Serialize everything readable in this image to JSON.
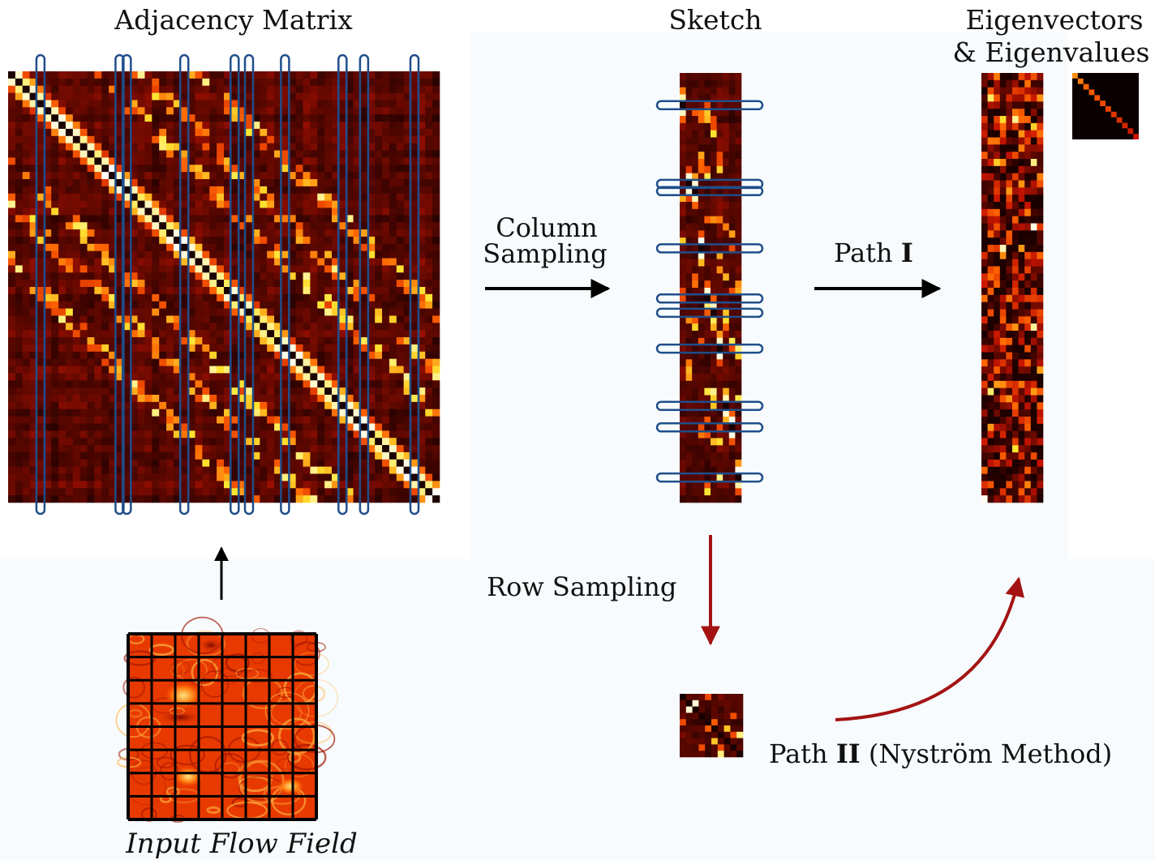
{
  "labels": {
    "adjacency_title": "Adjacency Matrix",
    "sketch_title": "Sketch",
    "eigen_title_line1": "Eigenvectors",
    "eigen_title_line2": "& Eigenvalues",
    "column_sampling_line1": "Column",
    "column_sampling_line2": "Sampling",
    "path1_prefix": "Path ",
    "path1_numeral": "I",
    "row_sampling": "Row Sampling",
    "path2_prefix": "Path ",
    "path2_numeral": "II",
    "path2_suffix": " (Nyström Method)",
    "input_flow_field": "Input Flow Field"
  },
  "colors": {
    "heat_dark": "#1a0000",
    "heat_red": "#c81400",
    "heat_orange": "#ff6400",
    "heat_yellow": "#ffe632",
    "sampling_outline": "#1f4e8a",
    "path1_arrow": "#000000",
    "path2_arrow": "#a41313",
    "panel_tint": "#f7fbfd"
  },
  "sampling": {
    "sampled_columns": [
      4,
      15,
      16,
      24,
      31,
      33,
      38,
      46,
      49,
      56
    ],
    "sketch_sampled_rows": [
      4,
      15,
      16,
      24,
      31,
      33,
      38,
      46,
      49,
      56
    ]
  },
  "icons": {
    "adjacency_matrix": "heatmap-matrix",
    "sketch": "heatmap-column-strip",
    "eigenvectors": "heatmap-column-strip",
    "eigenvalues": "diagonal-matrix",
    "row_sample": "small-heatmap",
    "flow_field": "gridded-flow-field"
  }
}
